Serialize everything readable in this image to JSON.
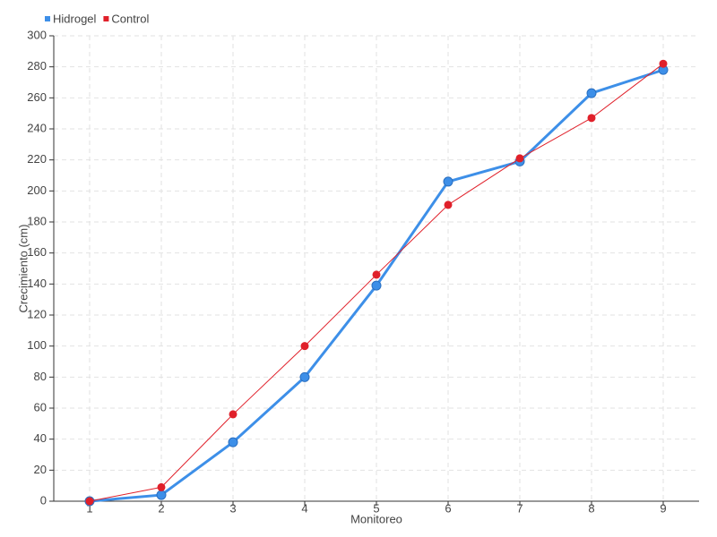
{
  "chart_data": {
    "type": "line",
    "x_label": "Monitoreo",
    "y_label": "Crecimiento (cm)",
    "x": [
      1,
      2,
      3,
      4,
      5,
      6,
      7,
      8,
      9
    ],
    "xlim": [
      0.5,
      9.5
    ],
    "xticks": [
      1,
      2,
      3,
      4,
      5,
      6,
      7,
      8,
      9
    ],
    "ylim": [
      0,
      300
    ],
    "yticks": [
      0,
      20,
      40,
      60,
      80,
      100,
      120,
      140,
      160,
      180,
      200,
      220,
      240,
      260,
      280,
      300
    ],
    "grid": true,
    "legend": "top-left",
    "series": [
      {
        "name": "Hidrogel",
        "color": "#3d8fe8",
        "values": [
          0,
          4,
          38,
          80,
          139,
          206,
          219,
          263,
          278
        ]
      },
      {
        "name": "Control",
        "color": "#e0202a",
        "values": [
          0,
          9,
          56,
          100,
          146,
          191,
          221,
          247,
          282
        ]
      }
    ]
  }
}
